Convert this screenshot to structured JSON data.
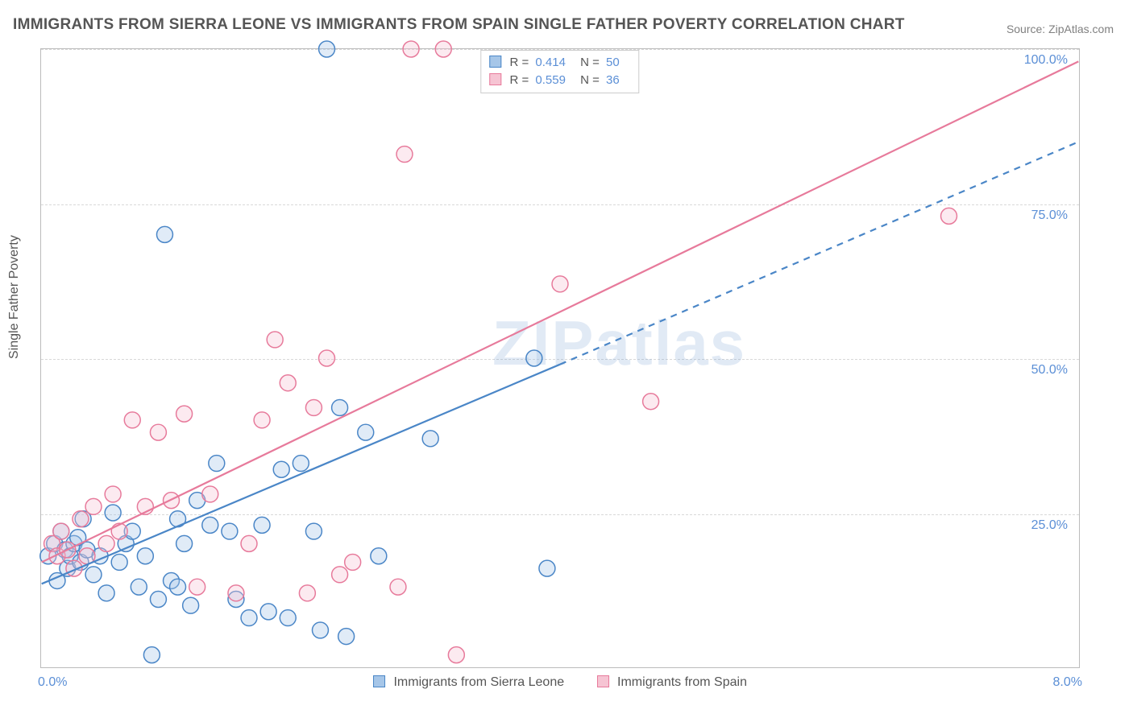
{
  "title": "IMMIGRANTS FROM SIERRA LEONE VS IMMIGRANTS FROM SPAIN SINGLE FATHER POVERTY CORRELATION CHART",
  "source": "Source: ZipAtlas.com",
  "watermark": "ZIPatlas",
  "y_axis_label": "Single Father Poverty",
  "chart": {
    "type": "scatter",
    "xlim": [
      0,
      8
    ],
    "ylim": [
      0,
      100
    ],
    "y_ticks": [
      25,
      50,
      75,
      100
    ],
    "y_tick_labels": [
      "25.0%",
      "50.0%",
      "75.0%",
      "100.0%"
    ],
    "x_corner_labels": [
      "0.0%",
      "8.0%"
    ],
    "background_color": "#ffffff",
    "grid_color": "#d8d8d8",
    "border_color": "#bbbbbb",
    "marker_radius": 10,
    "marker_fill_opacity": 0.35,
    "marker_stroke_width": 1.5
  },
  "series": [
    {
      "key": "sl",
      "label": "Immigrants from Sierra Leone",
      "color_stroke": "#4a86c7",
      "color_fill": "#a6c6e8",
      "R": "0.414",
      "N": "50",
      "trend": {
        "x1": 0.0,
        "y1": 13.5,
        "x2": 4.0,
        "y2": 49.0,
        "solid_until_x": 4.0,
        "dash_to_x": 8.0,
        "dash_to_y": 85.0,
        "width": 2.2
      },
      "points": [
        [
          0.05,
          18
        ],
        [
          0.1,
          20
        ],
        [
          0.12,
          14
        ],
        [
          0.15,
          22
        ],
        [
          0.18,
          19
        ],
        [
          0.2,
          16
        ],
        [
          0.22,
          18
        ],
        [
          0.25,
          20
        ],
        [
          0.28,
          21
        ],
        [
          0.3,
          17
        ],
        [
          0.35,
          19
        ],
        [
          0.4,
          15
        ],
        [
          0.45,
          18
        ],
        [
          0.5,
          12
        ],
        [
          0.55,
          25
        ],
        [
          0.6,
          17
        ],
        [
          0.65,
          20
        ],
        [
          0.7,
          22
        ],
        [
          0.75,
          13
        ],
        [
          0.8,
          18
        ],
        [
          0.85,
          2
        ],
        [
          0.9,
          11
        ],
        [
          0.95,
          70
        ],
        [
          1.0,
          14
        ],
        [
          1.05,
          13
        ],
        [
          1.1,
          20
        ],
        [
          1.15,
          10
        ],
        [
          1.2,
          27
        ],
        [
          1.3,
          23
        ],
        [
          1.35,
          33
        ],
        [
          1.45,
          22
        ],
        [
          1.5,
          11
        ],
        [
          1.6,
          8
        ],
        [
          1.7,
          23
        ],
        [
          1.75,
          9
        ],
        [
          1.85,
          32
        ],
        [
          1.9,
          8
        ],
        [
          2.0,
          33
        ],
        [
          2.1,
          22
        ],
        [
          2.15,
          6
        ],
        [
          2.2,
          100
        ],
        [
          2.3,
          42
        ],
        [
          2.35,
          5
        ],
        [
          2.5,
          38
        ],
        [
          2.6,
          18
        ],
        [
          3.0,
          37
        ],
        [
          3.8,
          50
        ],
        [
          3.9,
          16
        ],
        [
          1.05,
          24
        ],
        [
          0.32,
          24
        ]
      ]
    },
    {
      "key": "es",
      "label": "Immigrants from Spain",
      "color_stroke": "#e77a9b",
      "color_fill": "#f6c4d3",
      "R": "0.559",
      "N": "36",
      "trend": {
        "x1": 0.0,
        "y1": 17.0,
        "x2": 8.0,
        "y2": 98.0,
        "solid_until_x": 8.0,
        "width": 2.2
      },
      "points": [
        [
          0.08,
          20
        ],
        [
          0.12,
          18
        ],
        [
          0.15,
          22
        ],
        [
          0.2,
          19
        ],
        [
          0.25,
          16
        ],
        [
          0.3,
          24
        ],
        [
          0.35,
          18
        ],
        [
          0.4,
          26
        ],
        [
          0.5,
          20
        ],
        [
          0.55,
          28
        ],
        [
          0.6,
          22
        ],
        [
          0.7,
          40
        ],
        [
          0.8,
          26
        ],
        [
          0.9,
          38
        ],
        [
          1.0,
          27
        ],
        [
          1.1,
          41
        ],
        [
          1.2,
          13
        ],
        [
          1.3,
          28
        ],
        [
          1.5,
          12
        ],
        [
          1.6,
          20
        ],
        [
          1.7,
          40
        ],
        [
          1.8,
          53
        ],
        [
          1.9,
          46
        ],
        [
          2.05,
          12
        ],
        [
          2.1,
          42
        ],
        [
          2.2,
          50
        ],
        [
          2.3,
          15
        ],
        [
          2.4,
          17
        ],
        [
          2.75,
          13
        ],
        [
          2.8,
          83
        ],
        [
          2.85,
          100
        ],
        [
          3.1,
          100
        ],
        [
          3.2,
          2
        ],
        [
          4.0,
          62
        ],
        [
          4.7,
          43
        ],
        [
          7.0,
          73
        ]
      ]
    }
  ],
  "top_legend": {
    "rows": [
      {
        "swatch_series": "sl",
        "R_label": "R =",
        "R_value": "0.414",
        "N_label": "N =",
        "N_value": "50"
      },
      {
        "swatch_series": "es",
        "R_label": "R =",
        "R_value": "0.559",
        "N_label": "N =",
        "N_value": "36"
      }
    ]
  }
}
